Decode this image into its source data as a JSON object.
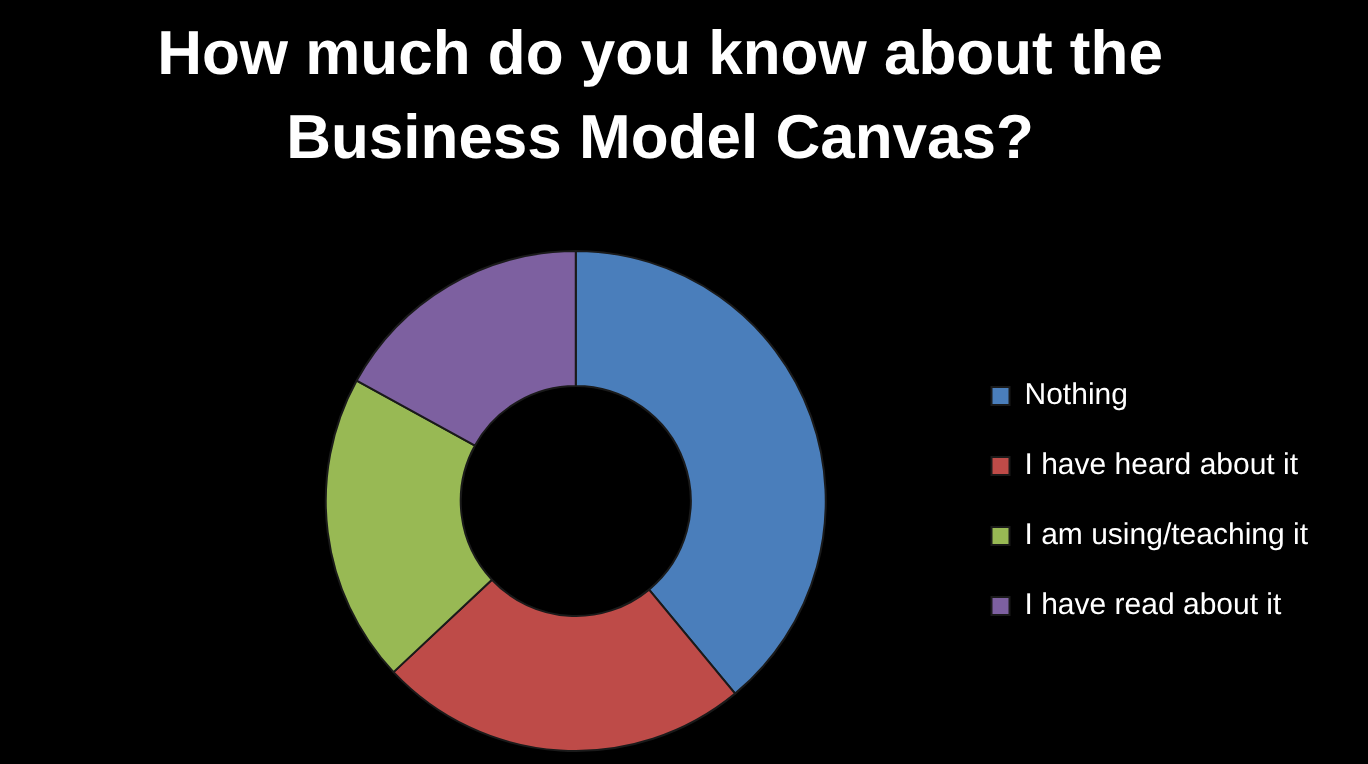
{
  "chart_data": {
    "type": "donut",
    "title": "How much do you know about the Business Model Canvas?",
    "categories": [
      "Nothing",
      "I have heard about it",
      "I am using/teaching it",
      "I have read about it"
    ],
    "values": [
      39,
      24,
      20,
      17
    ],
    "colors": [
      "#4a7ebb",
      "#be4b48",
      "#98b954",
      "#7d60a0"
    ],
    "legend": "right"
  }
}
